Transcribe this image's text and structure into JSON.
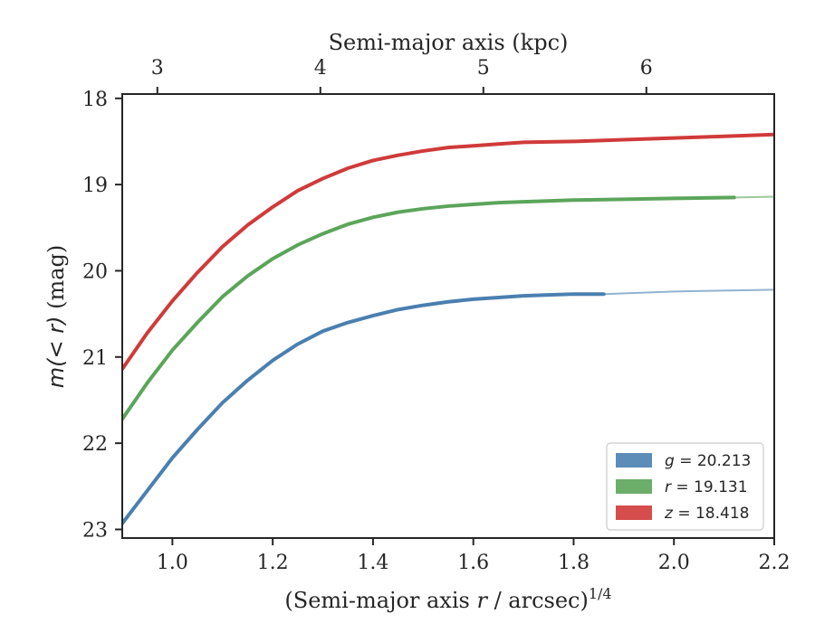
{
  "chart_data": {
    "type": "line",
    "title": "",
    "xlabel": "(Semi-major axis r / arcsec)^1/4",
    "xlabel_main": "(Semi-major axis ",
    "xlabel_var": "r",
    "xlabel_rest": " / arcsec)",
    "xlabel_exp": "1/4",
    "ylabel": "m(< r) (mag)",
    "ylabel_var": "m(< r)",
    "ylabel_unit": " (mag)",
    "top_xlabel": "Semi-major axis (kpc)",
    "xlim": [
      0.9,
      2.2
    ],
    "ylim": [
      23.1,
      17.95
    ],
    "y_inverted": true,
    "x_ticks": [
      "1.0",
      "1.2",
      "1.4",
      "1.6",
      "1.8",
      "2.0",
      "2.2"
    ],
    "x_tick_values": [
      1.0,
      1.2,
      1.4,
      1.6,
      1.8,
      2.0,
      2.2
    ],
    "y_ticks": [
      "18",
      "19",
      "20",
      "21",
      "22",
      "23"
    ],
    "y_tick_values": [
      18,
      19,
      20,
      21,
      22,
      23
    ],
    "top_ticks": [
      "3",
      "4",
      "5",
      "6"
    ],
    "top_tick_positions": [
      0.97,
      1.295,
      1.62,
      1.945
    ],
    "legend_position": "lower-right",
    "grid": false,
    "series": [
      {
        "name": "g = 20.213",
        "legend_var": "g",
        "legend_value": "= 20.213",
        "color": "#4a7fb0",
        "x": [
          0.9,
          0.95,
          1.0,
          1.05,
          1.1,
          1.15,
          1.2,
          1.25,
          1.3,
          1.35,
          1.4,
          1.45,
          1.5,
          1.55,
          1.6,
          1.65,
          1.7,
          1.75,
          1.8,
          1.86
        ],
        "y": [
          22.93,
          22.55,
          22.17,
          21.84,
          21.53,
          21.27,
          21.04,
          20.85,
          20.7,
          20.6,
          20.52,
          20.45,
          20.4,
          20.36,
          20.33,
          20.31,
          20.29,
          20.28,
          20.27,
          20.27
        ],
        "ext_x": [
          1.86,
          2.0,
          2.2
        ],
        "ext_y": [
          20.27,
          20.24,
          20.22
        ]
      },
      {
        "name": "r = 19.131",
        "legend_var": "r",
        "legend_value": "= 19.131",
        "color": "#5ba55a",
        "x": [
          0.9,
          0.95,
          1.0,
          1.05,
          1.1,
          1.15,
          1.2,
          1.25,
          1.3,
          1.35,
          1.4,
          1.45,
          1.5,
          1.55,
          1.6,
          1.65,
          1.7,
          1.8,
          1.9,
          2.0,
          2.12
        ],
        "y": [
          21.72,
          21.3,
          20.92,
          20.6,
          20.3,
          20.06,
          19.86,
          19.7,
          19.57,
          19.46,
          19.38,
          19.32,
          19.28,
          19.25,
          19.23,
          19.21,
          19.2,
          19.18,
          19.17,
          19.16,
          19.15
        ],
        "ext_x": [
          2.12,
          2.2
        ],
        "ext_y": [
          19.15,
          19.14
        ]
      },
      {
        "name": "z = 18.418",
        "legend_var": "z",
        "legend_value": "= 18.418",
        "color": "#d03a3a",
        "x": [
          0.9,
          0.95,
          1.0,
          1.05,
          1.1,
          1.15,
          1.2,
          1.25,
          1.3,
          1.35,
          1.4,
          1.45,
          1.5,
          1.55,
          1.6,
          1.65,
          1.7,
          1.8,
          1.9,
          2.0,
          2.1,
          2.2
        ],
        "y": [
          21.14,
          20.72,
          20.35,
          20.02,
          19.72,
          19.47,
          19.26,
          19.07,
          18.93,
          18.81,
          18.72,
          18.66,
          18.61,
          18.57,
          18.55,
          18.53,
          18.51,
          18.5,
          18.48,
          18.46,
          18.44,
          18.42
        ],
        "ext_x": [],
        "ext_y": []
      }
    ]
  }
}
